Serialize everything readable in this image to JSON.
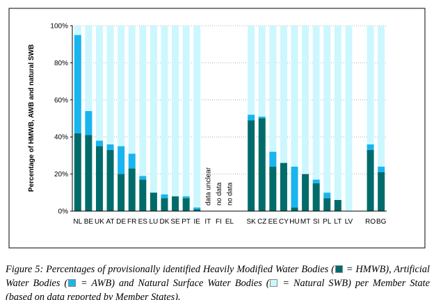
{
  "chart_data": {
    "type": "stacked_bar",
    "y_axis_label": "Percentage of HMWB, AWB and natural SWB",
    "categories": [
      "NL",
      "BE",
      "UK",
      "AT",
      "DE",
      "FR",
      "ES",
      "LU",
      "DK",
      "SE",
      "PT",
      "IE",
      "IT",
      "FI",
      "EL",
      null,
      "SK",
      "CZ",
      "EE",
      "CY",
      "HU",
      "MT",
      "SI",
      "PL",
      "LT",
      "LV",
      null,
      "RO",
      "BG"
    ],
    "category_notes": [
      null,
      null,
      null,
      null,
      null,
      null,
      null,
      null,
      null,
      null,
      null,
      null,
      "data unclear",
      "no data",
      "no data",
      null,
      null,
      null,
      null,
      null,
      null,
      null,
      null,
      null,
      null,
      null,
      null,
      null,
      null
    ],
    "series": [
      {
        "name": "HMWB",
        "color": "#006b6b",
        "values": [
          42,
          41,
          35,
          33,
          20,
          23,
          17,
          10,
          7,
          8,
          7,
          1,
          null,
          null,
          null,
          null,
          49,
          50,
          24,
          26,
          2,
          20,
          15,
          7,
          6,
          0,
          null,
          33,
          21
        ]
      },
      {
        "name": "AWB",
        "color": "#19b5ee",
        "values": [
          53,
          13,
          3,
          3,
          15,
          8,
          2,
          0,
          2,
          0,
          1,
          1,
          null,
          null,
          null,
          null,
          3,
          1,
          8,
          0,
          22,
          0,
          2,
          3,
          0,
          0,
          null,
          3,
          3
        ]
      },
      {
        "name": "Natural SWB",
        "color": "#ccf7ff",
        "values": [
          5,
          46,
          62,
          64,
          65,
          69,
          81,
          90,
          91,
          92,
          92,
          98,
          null,
          null,
          null,
          null,
          48,
          49,
          68,
          74,
          76,
          80,
          83,
          90,
          94,
          100,
          null,
          64,
          76
        ]
      }
    ],
    "ylim": [
      0,
      100
    ],
    "yticks": [
      {
        "value": 0,
        "label": "0%"
      },
      {
        "value": 20,
        "label": "20%"
      },
      {
        "value": 40,
        "label": "40%"
      },
      {
        "value": 60,
        "label": "60%"
      },
      {
        "value": 80,
        "label": "80%"
      },
      {
        "value": 100,
        "label": "100%"
      }
    ],
    "grid": true
  },
  "caption": {
    "segments": [
      "Figure 5: Percentages of provisionally identified Heavily Modified Water Bodies (",
      "), Artificial Water Bodies (",
      ") and Natural Surface Water Bodies (",
      ") per Member State (based on data reported by Member States)."
    ],
    "separator": "="
  }
}
